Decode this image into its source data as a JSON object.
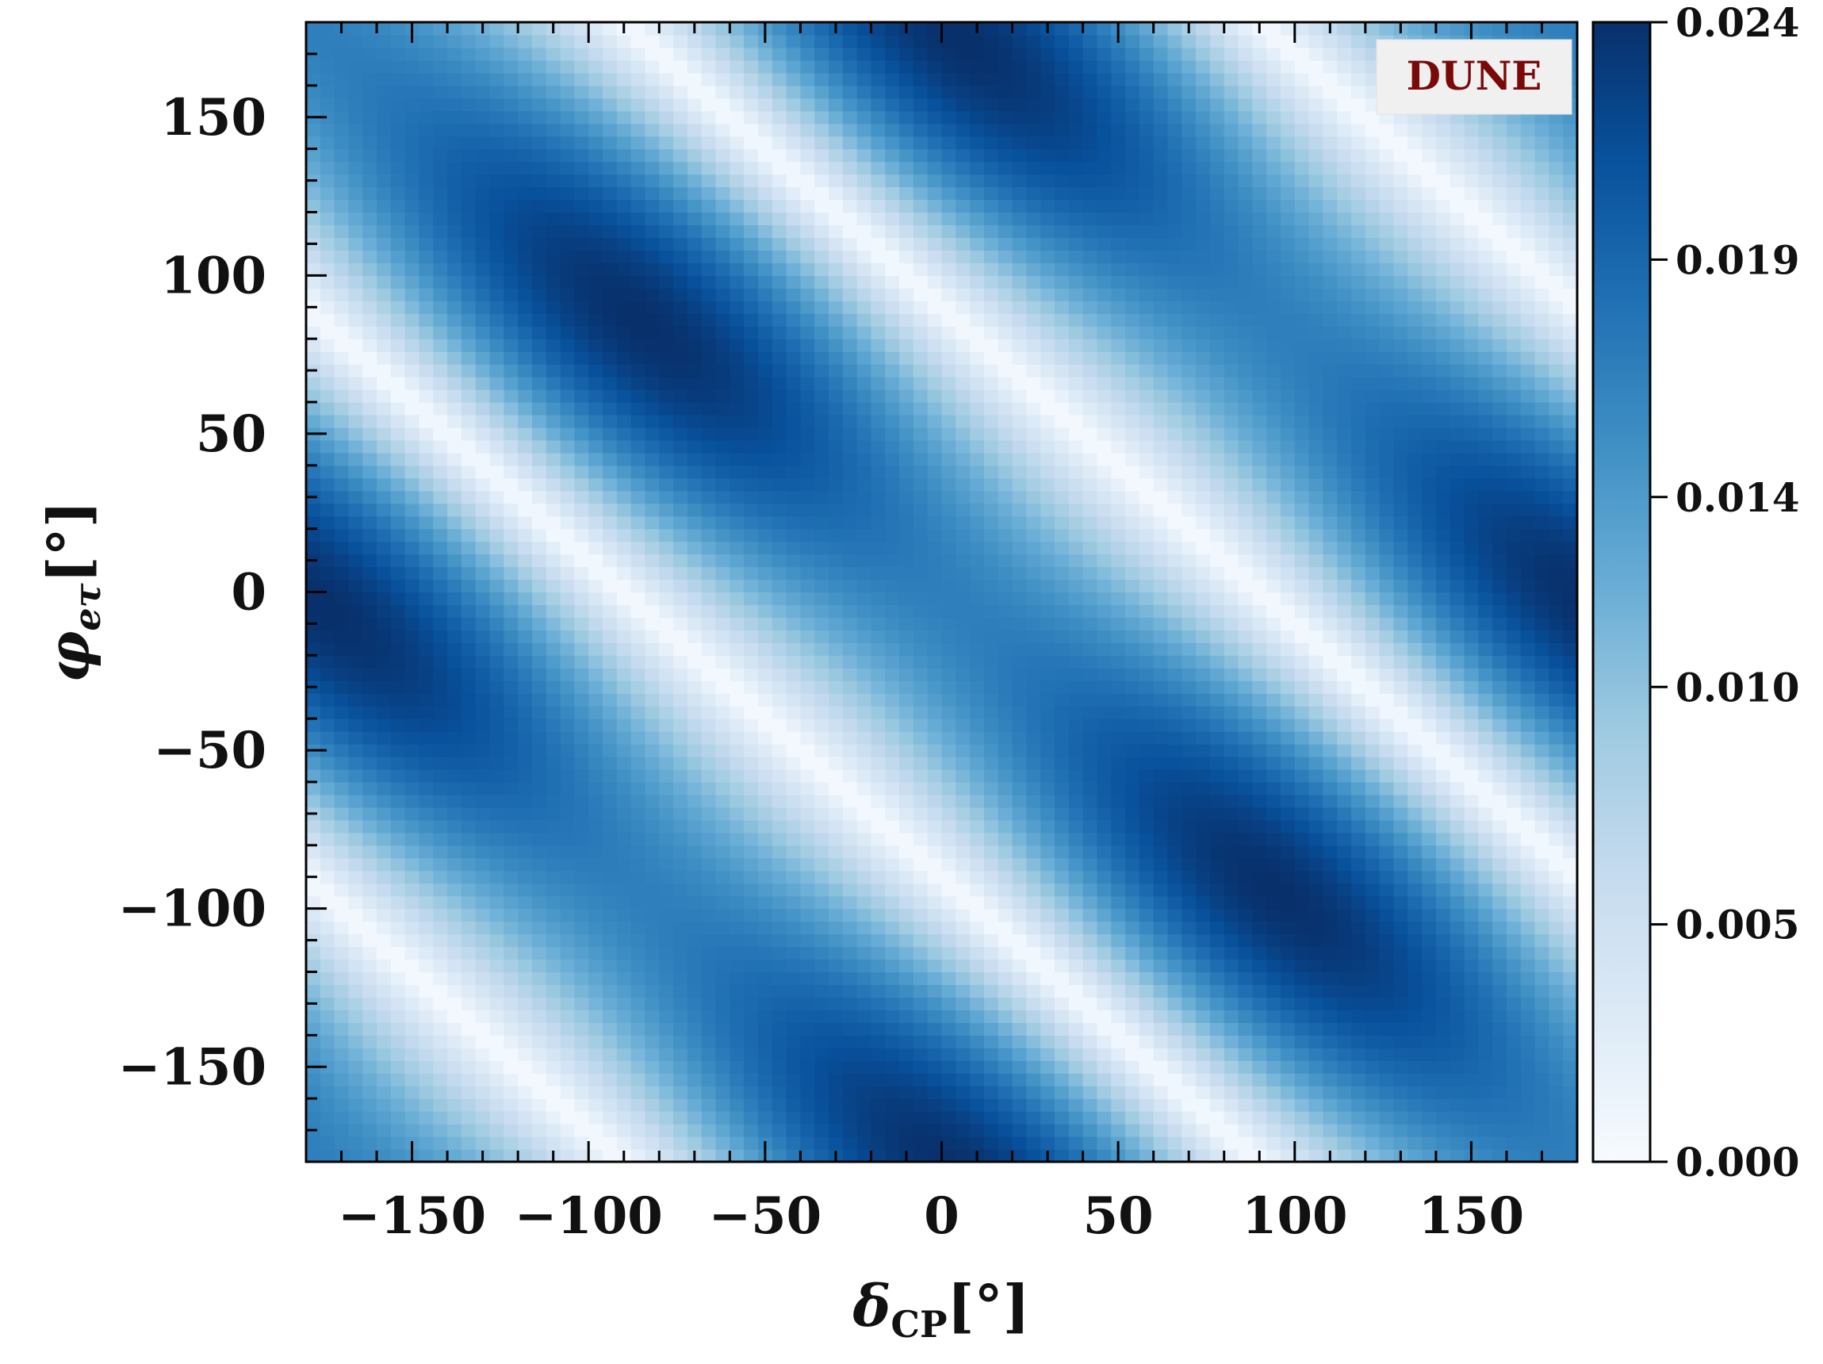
{
  "chart_data": {
    "type": "heatmap",
    "title": "",
    "x_axis": {
      "symbol": "δ",
      "subscript": "CP",
      "unit": "[°]",
      "range": [
        -180,
        180
      ],
      "major_ticks": [
        -150,
        -100,
        -50,
        0,
        50,
        100,
        150
      ],
      "tick_labels": [
        "−150",
        "−100",
        "−50",
        "0",
        "50",
        "100",
        "150"
      ]
    },
    "y_axis": {
      "symbol": "φ",
      "subscript": "eτ",
      "unit": "[°]",
      "range": [
        -180,
        180
      ],
      "major_ticks": [
        -150,
        -100,
        -50,
        0,
        50,
        100,
        150
      ],
      "tick_labels": [
        "−150",
        "−100",
        "−50",
        "0",
        "50",
        "100",
        "150"
      ]
    },
    "colorbar": {
      "colormap": "Blues",
      "range": [
        0.0,
        0.024
      ],
      "ticks": [
        0.0,
        0.005,
        0.01,
        0.014,
        0.019,
        0.024
      ],
      "tick_labels": [
        "0.000",
        "0.005",
        "0.010",
        "0.014",
        "0.019",
        "0.024"
      ]
    },
    "annotation": {
      "text": "DUNE",
      "placement": "top-right",
      "color": "#7a0a0a"
    },
    "pattern": {
      "description_values": "diagonal bands; zero (white) lines where delta_CP + phi_e_tau ≈ const",
      "zero_lines_at_sum_deg": [
        -270,
        -90,
        90,
        270
      ],
      "max_value": 0.024,
      "peak_region": {
        "delta_cp": -60,
        "phi_e_tau": 110
      }
    },
    "grid": false
  }
}
